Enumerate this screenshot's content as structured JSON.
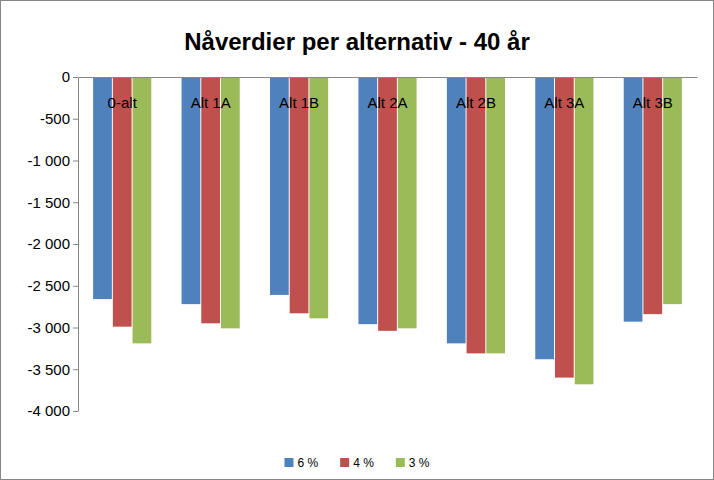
{
  "chart_data": {
    "type": "bar",
    "title": "Nåverdier per alternativ - 40 år",
    "categories": [
      "0-alt",
      "Alt 1A",
      "Alt 1B",
      "Alt 2A",
      "Alt 2B",
      "Alt 3A",
      "Alt 3B"
    ],
    "series": [
      {
        "name": "6 %",
        "color": "#4f81bd",
        "values": [
          -2660,
          -2720,
          -2610,
          -2960,
          -3190,
          -3380,
          -2930
        ]
      },
      {
        "name": "4 %",
        "color": "#c0504d",
        "values": [
          -2990,
          -2950,
          -2830,
          -3040,
          -3310,
          -3600,
          -2840
        ]
      },
      {
        "name": "3 %",
        "color": "#9bbb59",
        "values": [
          -3190,
          -3010,
          -2890,
          -3010,
          -3310,
          -3680,
          -2720
        ]
      }
    ],
    "ylim": [
      -4000,
      0
    ],
    "yticks": [
      0,
      -500,
      {
        "value": -1000,
        "label": "-1 000"
      },
      {
        "value": -1500,
        "label": "-1 500"
      },
      {
        "value": -2000,
        "label": "-2 000"
      },
      {
        "value": -2500,
        "label": "-2 500"
      },
      {
        "value": -3000,
        "label": "-3 000"
      },
      {
        "value": -3500,
        "label": "-3 500"
      },
      {
        "value": -4000,
        "label": "-4 000"
      }
    ],
    "grid": false,
    "legend": "bottom"
  }
}
